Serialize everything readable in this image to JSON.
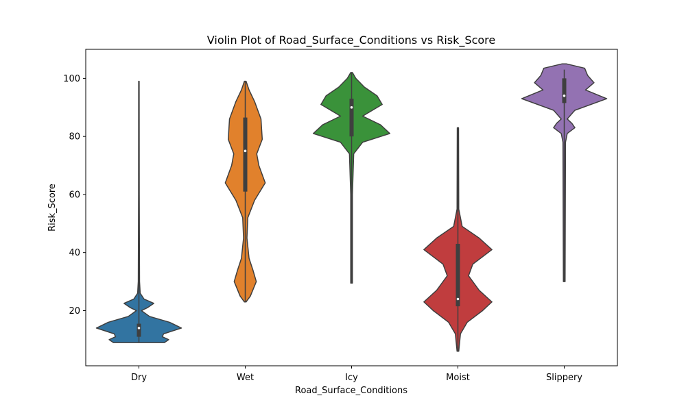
{
  "chart_data": {
    "type": "violin",
    "title": "Violin Plot of Road_Surface_Conditions vs Risk_Score",
    "xlabel": "Road_Surface_Conditions",
    "ylabel": "Risk_Score",
    "ylim": [
      1,
      110
    ],
    "yticks": [
      20,
      40,
      60,
      80,
      100
    ],
    "categories": [
      "Dry",
      "Wet",
      "Icy",
      "Moist",
      "Slippery"
    ],
    "colors": [
      "#3274a1",
      "#e1812c",
      "#3a923a",
      "#c03d3e",
      "#9372b2"
    ],
    "series": [
      {
        "category": "Dry",
        "min": 9,
        "q1": 11,
        "median": 14,
        "q3": 15.5,
        "max": 99,
        "density": [
          [
            9,
            0.6
          ],
          [
            10,
            0.7
          ],
          [
            11,
            0.55
          ],
          [
            12,
            0.58
          ],
          [
            14,
            1.0
          ],
          [
            16,
            0.72
          ],
          [
            18,
            0.25
          ],
          [
            20,
            0.06
          ],
          [
            21,
            0.2
          ],
          [
            22.5,
            0.35
          ],
          [
            24,
            0.12
          ],
          [
            26,
            0.03
          ],
          [
            30,
            0.015
          ],
          [
            60,
            0.008
          ],
          [
            99,
            0.006
          ]
        ]
      },
      {
        "category": "Wet",
        "min": 23,
        "q1": 61,
        "median": 75,
        "q3": 86.5,
        "max": 99,
        "density": [
          [
            23,
            0.02
          ],
          [
            25,
            0.12
          ],
          [
            30,
            0.26
          ],
          [
            34,
            0.18
          ],
          [
            38,
            0.09
          ],
          [
            45,
            0.04
          ],
          [
            52,
            0.06
          ],
          [
            58,
            0.22
          ],
          [
            64,
            0.47
          ],
          [
            70,
            0.32
          ],
          [
            74,
            0.27
          ],
          [
            79,
            0.4
          ],
          [
            86,
            0.37
          ],
          [
            92,
            0.22
          ],
          [
            96,
            0.09
          ],
          [
            99,
            0.02
          ]
        ]
      },
      {
        "category": "Icy",
        "min": 29.5,
        "q1": 80,
        "median": 90,
        "q3": 93,
        "max": 102,
        "density": [
          [
            29.5,
            0.02
          ],
          [
            60,
            0.02
          ],
          [
            74,
            0.05
          ],
          [
            78,
            0.26
          ],
          [
            81,
            0.9
          ],
          [
            84,
            0.68
          ],
          [
            87,
            0.26
          ],
          [
            91,
            0.72
          ],
          [
            94,
            0.6
          ],
          [
            97,
            0.3
          ],
          [
            100,
            0.1
          ],
          [
            102,
            0.02
          ]
        ]
      },
      {
        "category": "Moist",
        "min": 6,
        "q1": 21.5,
        "median": 24,
        "q3": 43,
        "max": 83,
        "density": [
          [
            6,
            0.02
          ],
          [
            12,
            0.06
          ],
          [
            16,
            0.22
          ],
          [
            20,
            0.58
          ],
          [
            23,
            0.8
          ],
          [
            27,
            0.5
          ],
          [
            32,
            0.25
          ],
          [
            36,
            0.35
          ],
          [
            41,
            0.8
          ],
          [
            45,
            0.5
          ],
          [
            49,
            0.1
          ],
          [
            55,
            0.02
          ],
          [
            83,
            0.015
          ]
        ]
      },
      {
        "category": "Slippery",
        "min": 30,
        "q1": 91.5,
        "median": 94,
        "q3": 100,
        "max": 103,
        "density": [
          [
            30,
            0.02
          ],
          [
            78,
            0.03
          ],
          [
            81,
            0.07
          ],
          [
            83,
            0.25
          ],
          [
            84.5,
            0.18
          ],
          [
            86,
            0.07
          ],
          [
            89,
            0.25
          ],
          [
            93,
            1.0
          ],
          [
            96,
            0.5
          ],
          [
            98.5,
            0.7
          ],
          [
            101,
            0.55
          ],
          [
            103.5,
            0.48
          ],
          [
            105,
            0.05
          ]
        ]
      }
    ]
  }
}
